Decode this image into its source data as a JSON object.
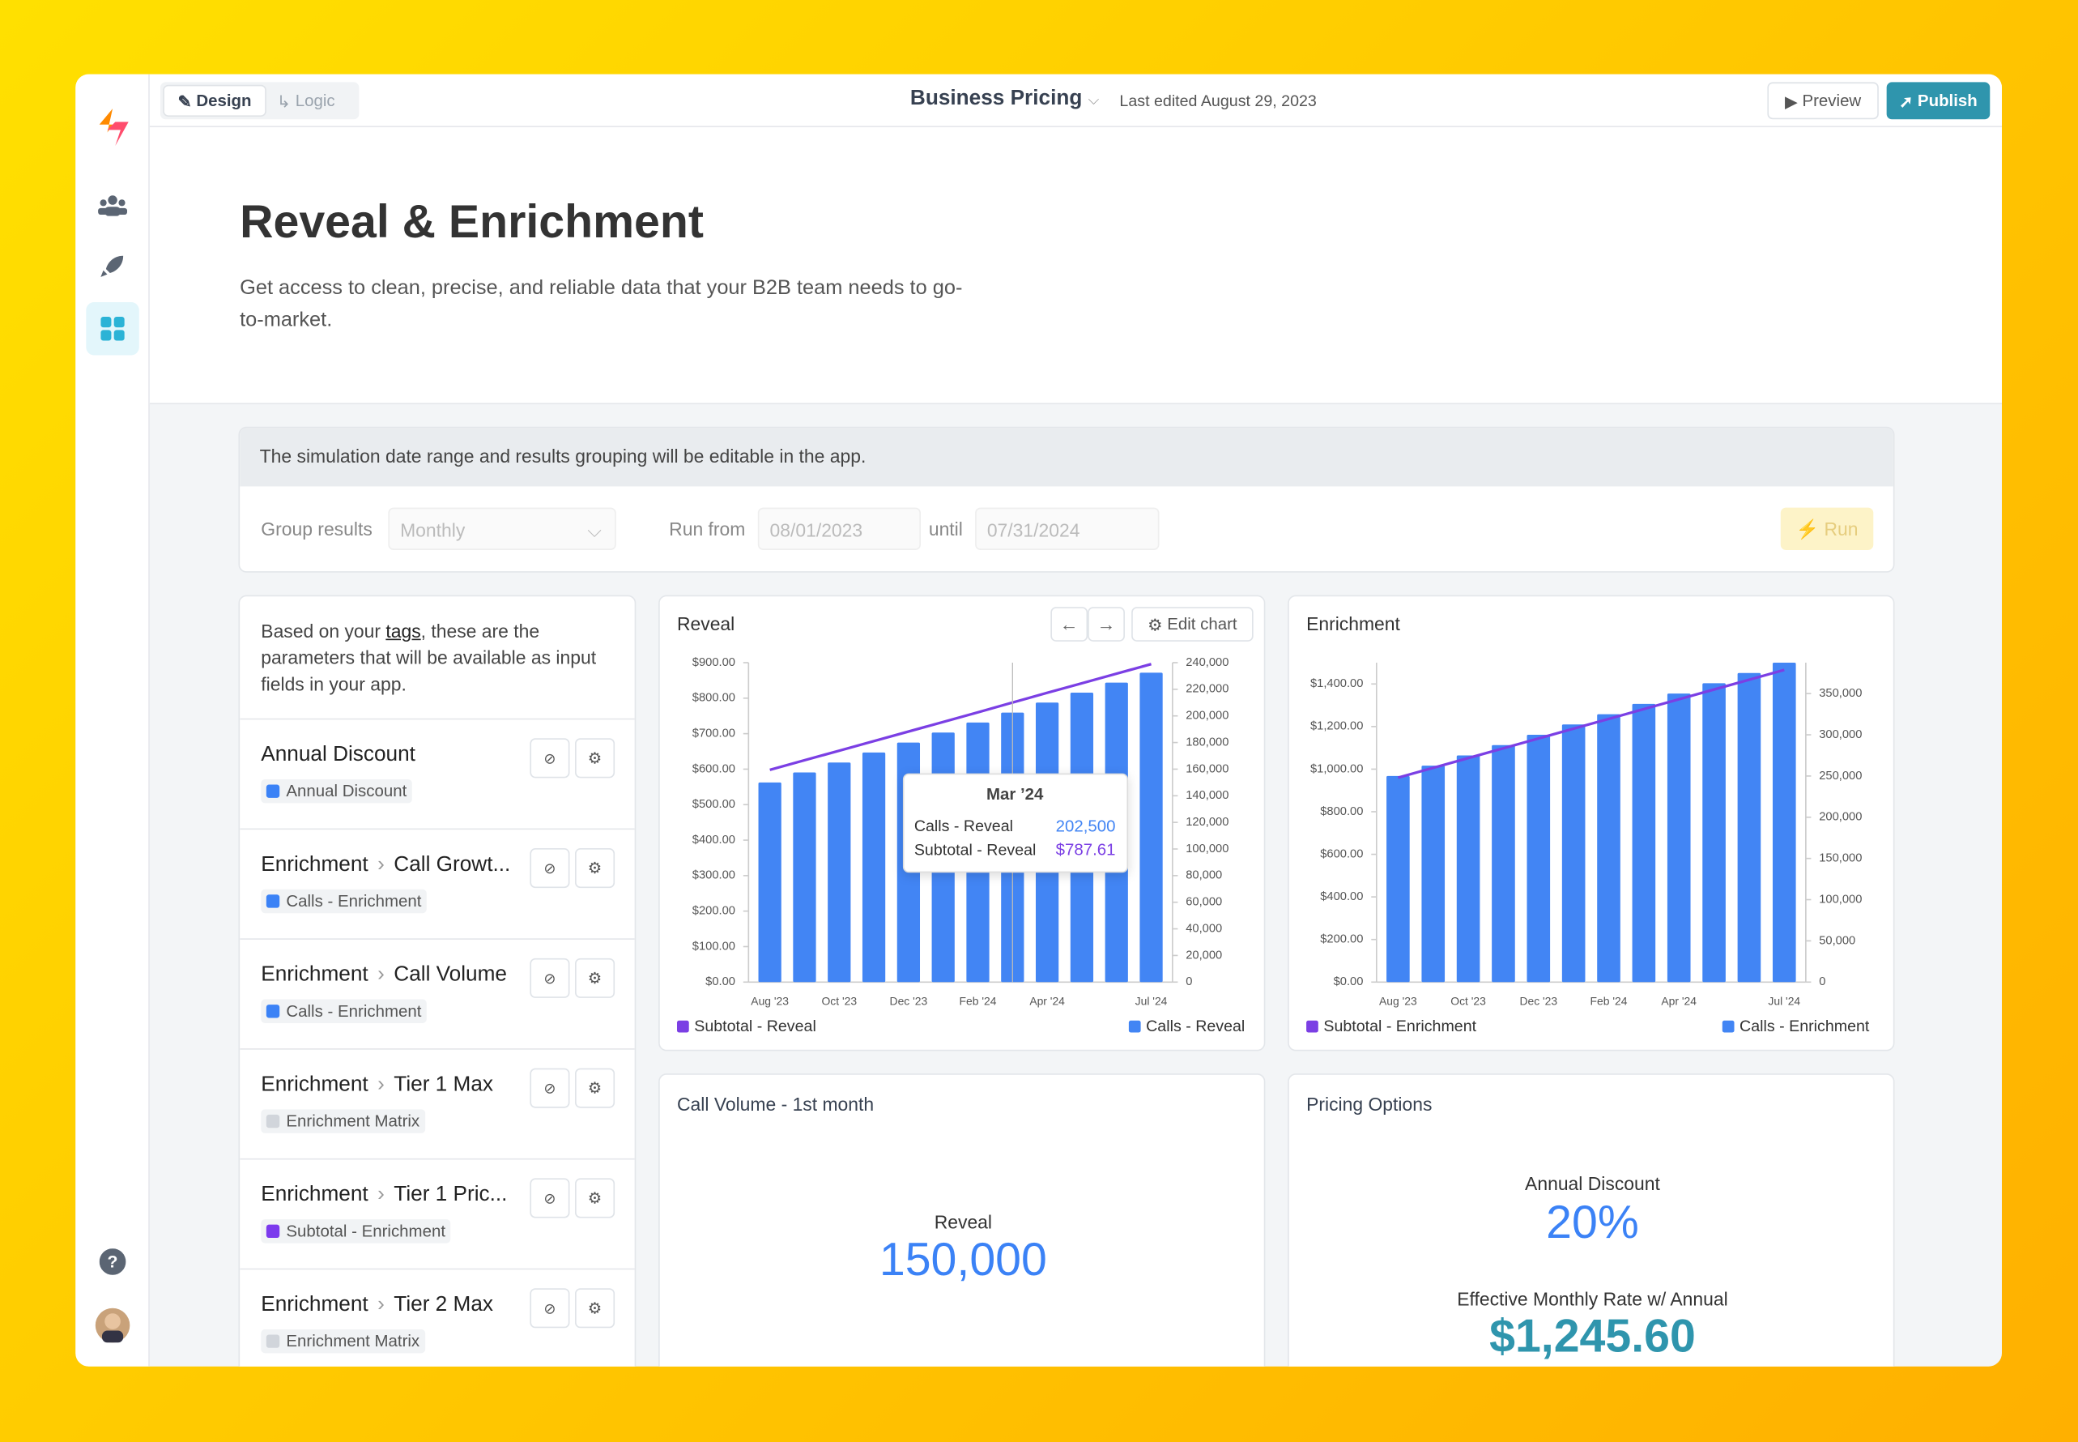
{
  "app": {
    "tabs": [
      "Design",
      "Logic"
    ],
    "doc_title": "Business Pricing",
    "last_edited": "Last edited August 29, 2023",
    "buttons": [
      "Preview",
      "Publish"
    ]
  },
  "page": {
    "title": "Reveal & Enrichment",
    "description": "Get access to clean, precise, and reliable data that your B2B team needs to go-to-market."
  },
  "simulation": {
    "notice": "The simulation date range and results grouping will be editable in the app.",
    "group_label": "Group results",
    "group_value": "Monthly",
    "run_from_label": "Run from",
    "from": "08/01/2023",
    "until_label": "until",
    "until": "07/31/2024",
    "run": "Run"
  },
  "parameters": {
    "intro_before": "Based on your ",
    "intro_link": "tags",
    "intro_after": ", these are the parameters that will be available as input fields in your app.",
    "items": [
      {
        "name": "Annual Discount",
        "tag": "Annual Discount",
        "tag_color": "#3b82f6"
      },
      {
        "prefix": "Enrichment",
        "name": "Call Growt...",
        "tag": "Calls - Enrichment",
        "tag_color": "#3b82f6"
      },
      {
        "prefix": "Enrichment",
        "name": "Call Volume",
        "tag": "Calls - Enrichment",
        "tag_color": "#3b82f6"
      },
      {
        "prefix": "Enrichment",
        "name": "Tier 1 Max",
        "tag": "Enrichment Matrix",
        "tag_color": "#d1d5db"
      },
      {
        "prefix": "Enrichment",
        "name": "Tier 1 Pric...",
        "tag": "Subtotal - Enrichment",
        "tag_color": "#7c3aed"
      },
      {
        "prefix": "Enrichment",
        "name": "Tier 2 Max",
        "tag": "Enrichment Matrix",
        "tag_color": "#d1d5db"
      }
    ]
  },
  "charts": [
    {
      "type": "bar",
      "title": "Reveal",
      "edit_button": "Edit chart",
      "legend": "bottom",
      "categories": [
        "Aug '23",
        null,
        "Oct '23",
        null,
        "Dec '23",
        null,
        "Feb '24",
        null,
        "Apr '24",
        null,
        null,
        "Jul '24"
      ],
      "series": [
        {
          "name": "Subtotal - Reveal",
          "type": "line",
          "color": "#7b3fe4",
          "values": [
            598,
            625,
            652,
            679,
            706,
            733,
            760,
            787.61,
            815,
            842,
            869,
            896
          ]
        },
        {
          "name": "Calls - Reveal",
          "type": "bar",
          "color": "#4285f4",
          "axis": "y2",
          "values": [
            150000,
            157500,
            165000,
            172500,
            180000,
            187500,
            195000,
            202500,
            210000,
            217500,
            225000,
            232500
          ]
        }
      ],
      "ylim": [
        0,
        900
      ],
      "yticks": [
        {
          "value": 0,
          "label": "$0.00"
        },
        {
          "value": 100,
          "label": "$100.00"
        },
        {
          "value": 200,
          "label": "$200.00"
        },
        {
          "value": 300,
          "label": "$300.00"
        },
        {
          "value": 400,
          "label": "$400.00"
        },
        {
          "value": 500,
          "label": "$500.00"
        },
        {
          "value": 600,
          "label": "$600.00"
        },
        {
          "value": 700,
          "label": "$700.00"
        },
        {
          "value": 800,
          "label": "$800.00"
        },
        {
          "value": 900,
          "label": "$900.00"
        }
      ],
      "y2lim": [
        0,
        240000
      ],
      "y2ticks": [
        0,
        {
          "value": 20000,
          "label": "20,000"
        },
        {
          "value": 40000,
          "label": "40,000"
        },
        {
          "value": 60000,
          "label": "60,000"
        },
        {
          "value": 80000,
          "label": "80,000"
        },
        {
          "value": 100000,
          "label": "100,000"
        },
        {
          "value": 120000,
          "label": "120,000"
        },
        {
          "value": 140000,
          "label": "140,000"
        },
        {
          "value": 160000,
          "label": "160,000"
        },
        {
          "value": 180000,
          "label": "180,000"
        },
        {
          "value": 200000,
          "label": "200,000"
        },
        {
          "value": 220000,
          "label": "220,000"
        },
        {
          "value": 240000,
          "label": "240,000"
        }
      ],
      "tooltip": {
        "title": "Mar ’24",
        "rows": [
          {
            "label": "Calls - Reveal",
            "value": "202,500",
            "color": "#4285f4"
          },
          {
            "label": "Subtotal - Reveal",
            "value": "$787.61",
            "color": "#7b3fe4"
          }
        ]
      }
    },
    {
      "type": "bar",
      "title": "Enrichment",
      "legend": "bottom",
      "categories": [
        "Aug '23",
        null,
        "Oct '23",
        null,
        "Dec '23",
        null,
        "Feb '24",
        null,
        "Apr '24",
        null,
        null,
        "Jul '24"
      ],
      "series": [
        {
          "name": "Subtotal - Enrichment",
          "type": "line",
          "color": "#7b3fe4",
          "values": [
            960,
            1006,
            1052,
            1098,
            1144,
            1190,
            1236,
            1282,
            1328,
            1374,
            1420,
            1466
          ]
        },
        {
          "name": "Calls - Enrichment",
          "type": "bar",
          "color": "#4285f4",
          "axis": "y2",
          "values": [
            250000,
            262500,
            275000,
            287500,
            300000,
            312500,
            325000,
            337500,
            350000,
            362500,
            375000,
            387500
          ]
        }
      ],
      "ylim": [
        0,
        1500
      ],
      "yticks": [
        {
          "value": 0,
          "label": "$0.00"
        },
        {
          "value": 200,
          "label": "$200.00"
        },
        {
          "value": 400,
          "label": "$400.00"
        },
        {
          "value": 600,
          "label": "$600.00"
        },
        {
          "value": 800,
          "label": "$800.00"
        },
        {
          "value": 1000,
          "label": "$1,000.00"
        },
        {
          "value": 1200,
          "label": "$1,200.00"
        },
        {
          "value": 1400,
          "label": "$1,400.00"
        }
      ],
      "y2lim": [
        0,
        387500
      ],
      "y2ticks": [
        0,
        {
          "value": 50000,
          "label": "50,000"
        },
        {
          "value": 100000,
          "label": "100,000"
        },
        {
          "value": 150000,
          "label": "150,000"
        },
        {
          "value": 200000,
          "label": "200,000"
        },
        {
          "value": 250000,
          "label": "250,000"
        },
        {
          "value": 300000,
          "label": "300,000"
        },
        {
          "value": 350000,
          "label": "350,000"
        }
      ]
    }
  ],
  "metrics": {
    "call_volume": {
      "title": "Call Volume - 1st month",
      "label": "Reveal",
      "value": "150,000"
    },
    "pricing": {
      "title": "Pricing Options",
      "items": [
        {
          "label": "Annual Discount",
          "value": "20%"
        },
        {
          "label": "Effective Monthly Rate w/ Annual",
          "value": "$1,245.60"
        }
      ]
    }
  }
}
